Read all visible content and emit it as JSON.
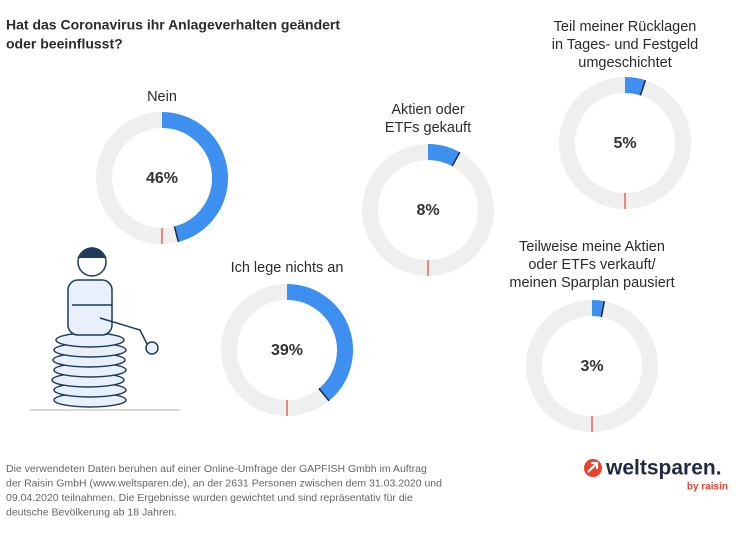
{
  "title": [
    "Hat das Coronavirus ihr Anlageverhalten geändert",
    "oder beeinflusst?"
  ],
  "chart_data": [
    {
      "type": "donut",
      "title": [
        "Nein"
      ],
      "values": [
        46
      ],
      "value_labels": [
        "46%"
      ],
      "color": "#3d8ff0"
    },
    {
      "type": "donut",
      "title": [
        "Ich lege nichts an"
      ],
      "values": [
        39
      ],
      "value_labels": [
        "39%"
      ],
      "color": "#3d8ff0"
    },
    {
      "type": "donut",
      "title": [
        "Aktien oder",
        "ETFs gekauft"
      ],
      "values": [
        8
      ],
      "value_labels": [
        "8%"
      ],
      "color": "#3d8ff0"
    },
    {
      "type": "donut",
      "title": [
        "Teil meiner Rücklagen",
        "in Tages- und Festgeld",
        "umgeschichtet"
      ],
      "values": [
        5
      ],
      "value_labels": [
        "5%"
      ],
      "color": "#3d8ff0"
    },
    {
      "type": "donut",
      "title": [
        "Teilweise meine Aktien",
        "oder ETFs verkauft/",
        "meinen Sparplan pausiert"
      ],
      "values": [
        3
      ],
      "value_labels": [
        "3%"
      ],
      "color": "#3d8ff0"
    }
  ],
  "note": [
    "Die verwendeten Daten beruhen auf einer Online-Umfrage der GAPFISH Gmbh im Auftrag",
    "der Raisin GmbH (www.weltsparen.de), an der 2631 Personen zwischen dem 31.03.2020 und",
    "09.04.2020 teilnahmen. Die Ergebnisse wurden gewichtet und sind repräsentativ für die",
    "deutsche Bevölkerung ab 18 Jahren."
  ],
  "logo": {
    "name": "weltsparen.",
    "tagline": "by raisin"
  }
}
